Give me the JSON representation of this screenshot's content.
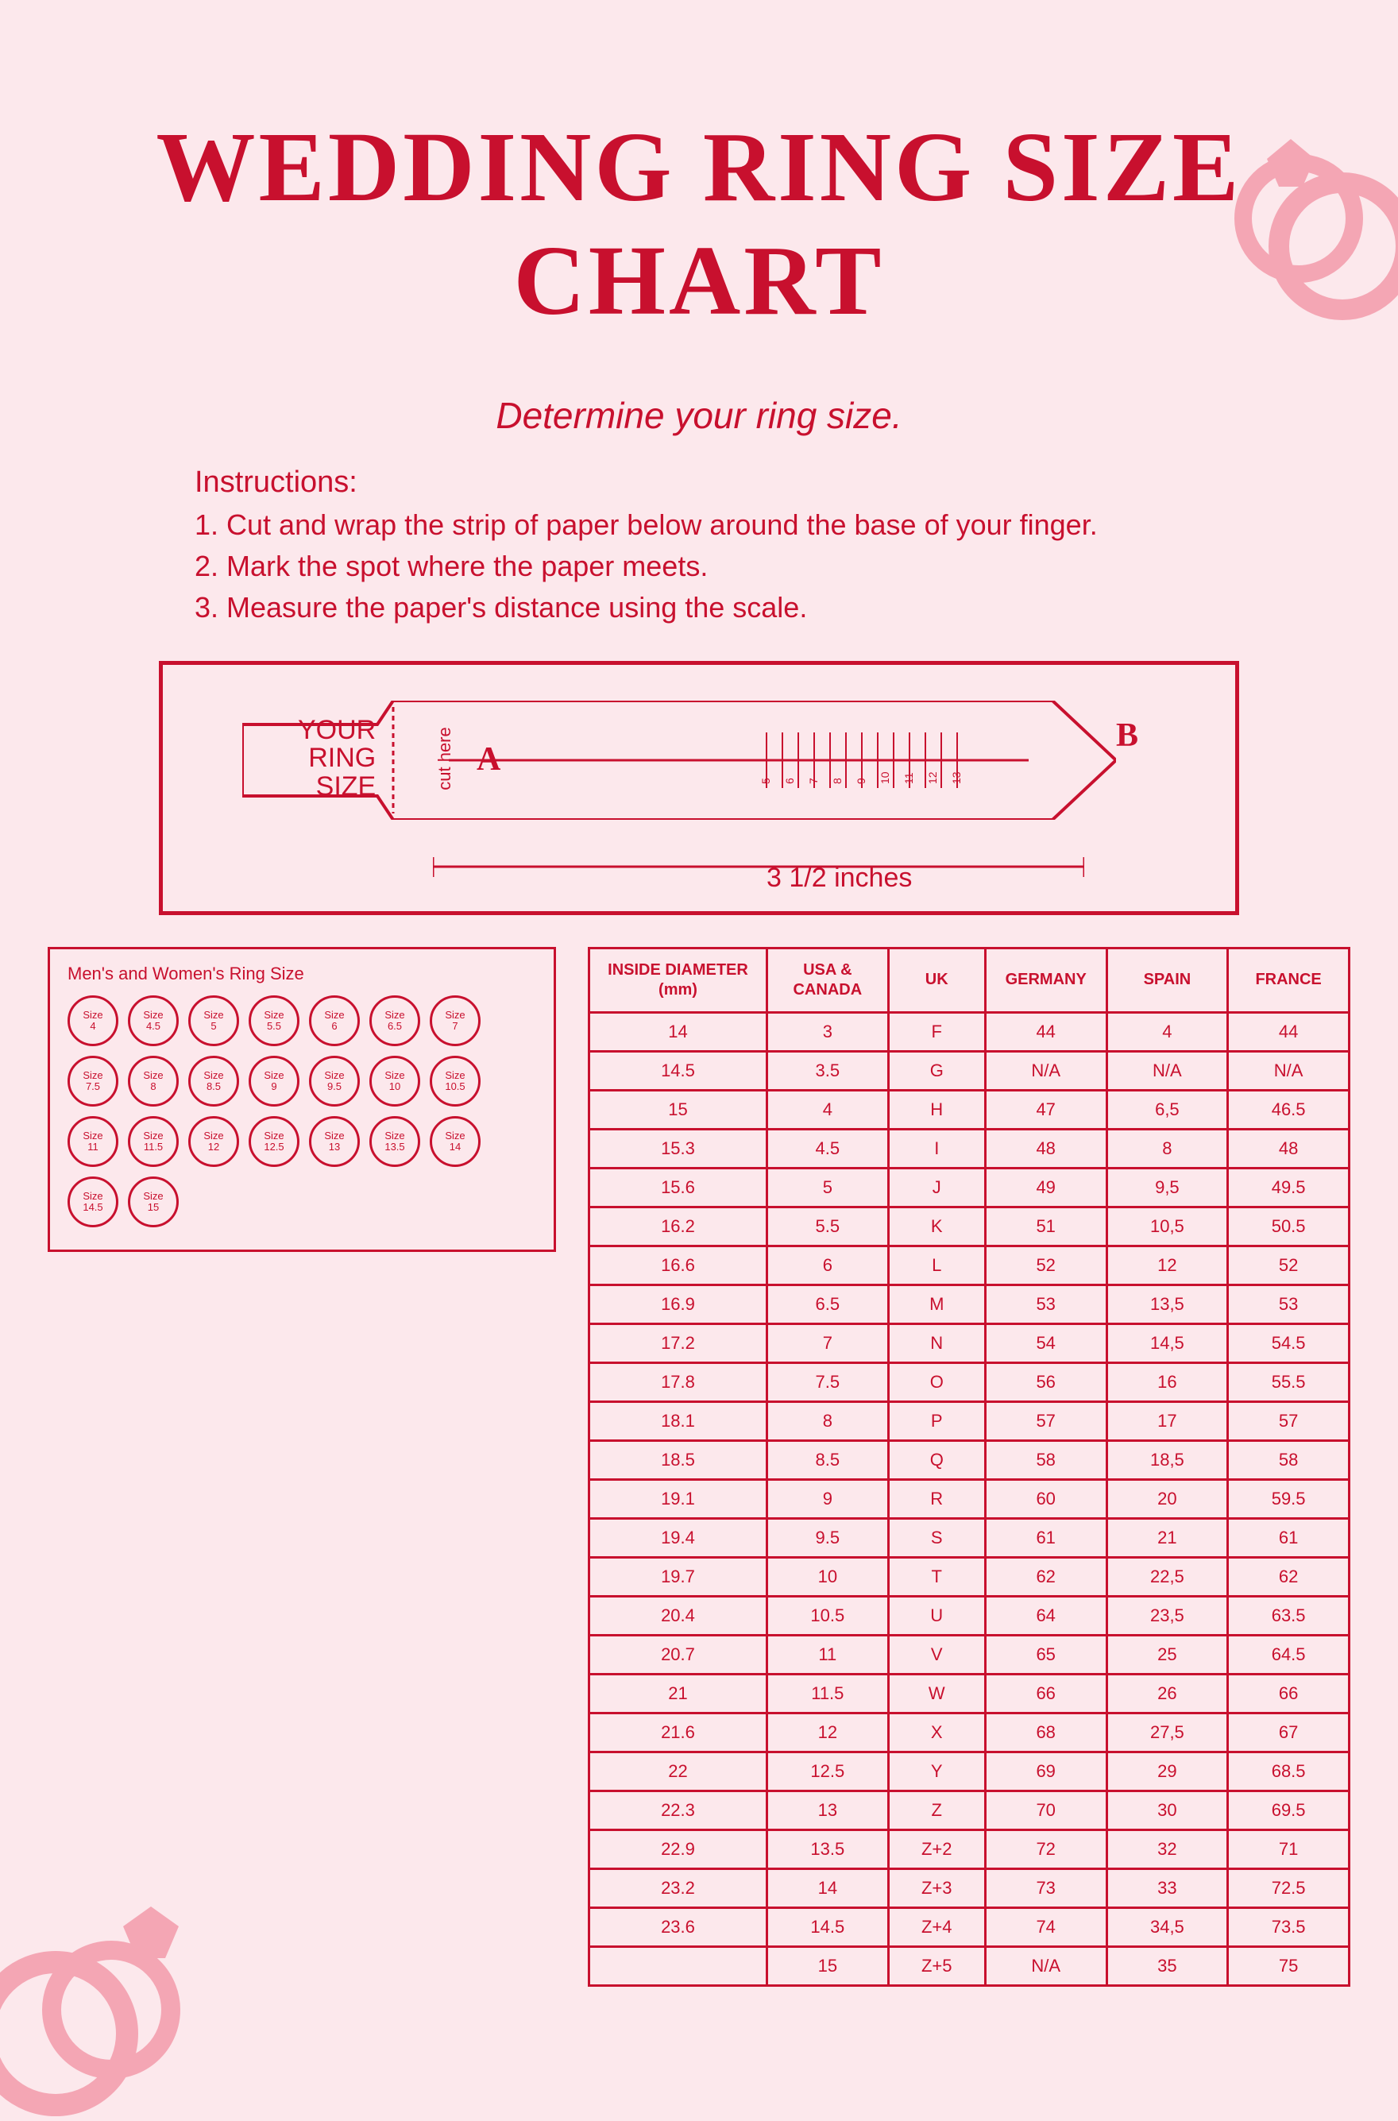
{
  "colors": {
    "primary": "#c8102e",
    "background": "#fce8ec",
    "accent_pink": "#f4a6b4"
  },
  "title": "WEDDING RING SIZE CHART",
  "subtitle": "Determine your ring size.",
  "instructions": {
    "header": "Instructions:",
    "lines": [
      "1. Cut and wrap the strip of paper below around the base of your finger.",
      "2. Mark the spot where the paper meets.",
      "3. Measure the paper's distance using the scale."
    ]
  },
  "ruler": {
    "label_line1": "YOUR",
    "label_line2": "RING",
    "label_line3": "SIZE",
    "cut_here": "cut here",
    "letter_a": "A",
    "letter_b": "B",
    "scale_label": "3 1/2 inches",
    "tick_labels": [
      "5",
      "6",
      "7",
      "8",
      "9",
      "10",
      "11",
      "12",
      "13"
    ]
  },
  "circles": {
    "title": "Men's and Women's Ring Size",
    "label_prefix": "Size",
    "sizes": [
      "4",
      "4.5",
      "5",
      "5.5",
      "6",
      "6.5",
      "7",
      "7.5",
      "8",
      "8.5",
      "9",
      "9.5",
      "10",
      "10.5",
      "11",
      "11.5",
      "12",
      "12.5",
      "13",
      "13.5",
      "14",
      "14.5",
      "15"
    ]
  },
  "table": {
    "columns": [
      "INSIDE DIAMETER (mm)",
      "USA & CANADA",
      "UK",
      "GERMANY",
      "SPAIN",
      "FRANCE"
    ],
    "rows": [
      [
        "14",
        "3",
        "F",
        "44",
        "4",
        "44"
      ],
      [
        "14.5",
        "3.5",
        "G",
        "N/A",
        "N/A",
        "N/A"
      ],
      [
        "15",
        "4",
        "H",
        "47",
        "6,5",
        "46.5"
      ],
      [
        "15.3",
        "4.5",
        "I",
        "48",
        "8",
        "48"
      ],
      [
        "15.6",
        "5",
        "J",
        "49",
        "9,5",
        "49.5"
      ],
      [
        "16.2",
        "5.5",
        "K",
        "51",
        "10,5",
        "50.5"
      ],
      [
        "16.6",
        "6",
        "L",
        "52",
        "12",
        "52"
      ],
      [
        "16.9",
        "6.5",
        "M",
        "53",
        "13,5",
        "53"
      ],
      [
        "17.2",
        "7",
        "N",
        "54",
        "14,5",
        "54.5"
      ],
      [
        "17.8",
        "7.5",
        "O",
        "56",
        "16",
        "55.5"
      ],
      [
        "18.1",
        "8",
        "P",
        "57",
        "17",
        "57"
      ],
      [
        "18.5",
        "8.5",
        "Q",
        "58",
        "18,5",
        "58"
      ],
      [
        "19.1",
        "9",
        "R",
        "60",
        "20",
        "59.5"
      ],
      [
        "19.4",
        "9.5",
        "S",
        "61",
        "21",
        "61"
      ],
      [
        "19.7",
        "10",
        "T",
        "62",
        "22,5",
        "62"
      ],
      [
        "20.4",
        "10.5",
        "U",
        "64",
        "23,5",
        "63.5"
      ],
      [
        "20.7",
        "11",
        "V",
        "65",
        "25",
        "64.5"
      ],
      [
        "21",
        "11.5",
        "W",
        "66",
        "26",
        "66"
      ],
      [
        "21.6",
        "12",
        "X",
        "68",
        "27,5",
        "67"
      ],
      [
        "22",
        "12.5",
        "Y",
        "69",
        "29",
        "68.5"
      ],
      [
        "22.3",
        "13",
        "Z",
        "70",
        "30",
        "69.5"
      ],
      [
        "22.9",
        "13.5",
        "Z+2",
        "72",
        "32",
        "71"
      ],
      [
        "23.2",
        "14",
        "Z+3",
        "73",
        "33",
        "72.5"
      ],
      [
        "23.6",
        "14.5",
        "Z+4",
        "74",
        "34,5",
        "73.5"
      ],
      [
        "",
        "15",
        "Z+5",
        "N/A",
        "35",
        "75"
      ]
    ]
  }
}
